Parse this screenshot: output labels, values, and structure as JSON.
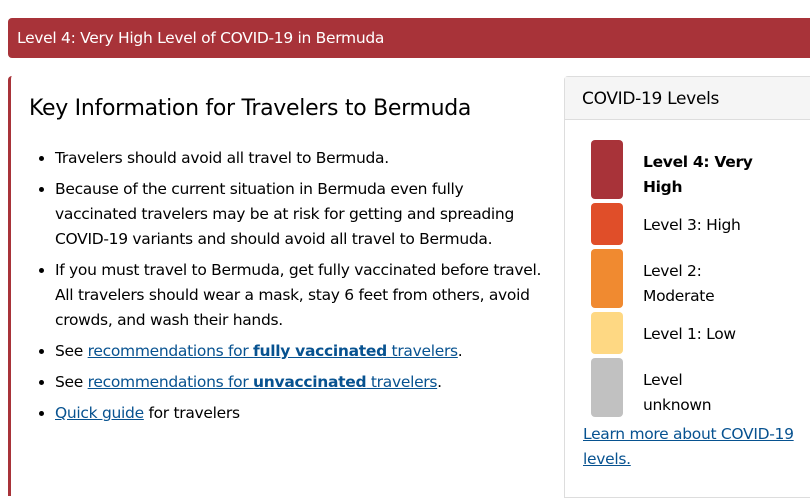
{
  "banner": "Level 4: Very High Level of COVID-19 in Bermuda",
  "main": {
    "title": "Key Information for Travelers to Bermuda",
    "bullets": [
      "Travelers should avoid all travel to Bermuda.",
      "Because of the current situation in  Bermuda even fully vaccinated travelers may be at risk for getting and spreading COVID-19 variants and should avoid all travel to Bermuda.",
      "If you must travel to Bermuda, get fully vaccinated before travel. All travelers should wear a mask, stay 6 feet from others, avoid crowds, and wash their hands."
    ],
    "see": "See ",
    "vax_link": {
      "pre": "recommendations for ",
      "bold": "fully vaccinated",
      "post": " travelers"
    },
    "unvax_link": {
      "pre": "recommendations for ",
      "bold": "unvaccinated",
      "post": " travelers"
    },
    "period": ".",
    "quick_link": "Quick guide",
    "quick_post": " for travelers"
  },
  "sidebar": {
    "title": "COVID-19 Levels",
    "levels": [
      {
        "label": "Level 4: Very High",
        "color": "#a83339"
      },
      {
        "label": "Level 3: High",
        "color": "#e04e29"
      },
      {
        "label": "Level 2: Moderate",
        "color": "#f08a30"
      },
      {
        "label": "Level 1: Low",
        "color": "#fed883"
      },
      {
        "label": "Level unknown",
        "color": "#c1c1c1"
      }
    ],
    "learn_more": "Learn more about COVID-19 levels."
  }
}
